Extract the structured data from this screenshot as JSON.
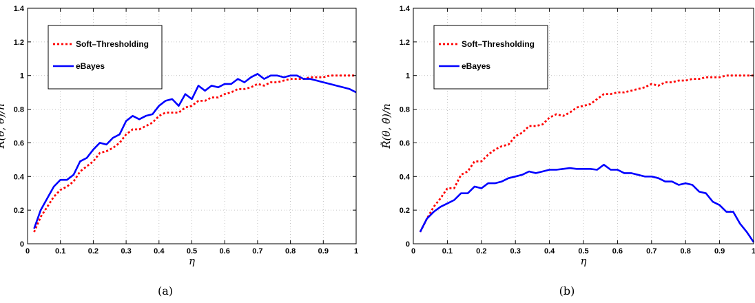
{
  "chart_data": [
    {
      "type": "line",
      "panel_label": "(a)",
      "xlabel": "η",
      "ylabel": "R̃(θ, θ̂)/n",
      "xlim": [
        0,
        1
      ],
      "ylim": [
        0,
        1.4
      ],
      "x_ticks": [
        "0",
        "0.1",
        "0.2",
        "0.3",
        "0.4",
        "0.5",
        "0.6",
        "0.7",
        "0.8",
        "0.9",
        "1"
      ],
      "y_ticks": [
        "0",
        "0.2",
        "0.4",
        "0.6",
        "0.8",
        "1",
        "1.2",
        "1.4"
      ],
      "grid": true,
      "legend_position": "top-left",
      "series": [
        {
          "name": "Soft–Thresholding",
          "color": "#ff0000",
          "style": "dotted",
          "points": [
            [
              0.02,
              0.07
            ],
            [
              0.04,
              0.16
            ],
            [
              0.06,
              0.22
            ],
            [
              0.08,
              0.28
            ],
            [
              0.1,
              0.32
            ],
            [
              0.12,
              0.34
            ],
            [
              0.14,
              0.37
            ],
            [
              0.16,
              0.43
            ],
            [
              0.18,
              0.46
            ],
            [
              0.2,
              0.49
            ],
            [
              0.22,
              0.54
            ],
            [
              0.24,
              0.55
            ],
            [
              0.26,
              0.57
            ],
            [
              0.28,
              0.6
            ],
            [
              0.3,
              0.65
            ],
            [
              0.32,
              0.68
            ],
            [
              0.34,
              0.68
            ],
            [
              0.36,
              0.7
            ],
            [
              0.38,
              0.72
            ],
            [
              0.4,
              0.76
            ],
            [
              0.42,
              0.78
            ],
            [
              0.44,
              0.78
            ],
            [
              0.46,
              0.78
            ],
            [
              0.48,
              0.81
            ],
            [
              0.5,
              0.82
            ],
            [
              0.52,
              0.85
            ],
            [
              0.54,
              0.85
            ],
            [
              0.56,
              0.87
            ],
            [
              0.58,
              0.87
            ],
            [
              0.6,
              0.89
            ],
            [
              0.62,
              0.9
            ],
            [
              0.64,
              0.92
            ],
            [
              0.66,
              0.92
            ],
            [
              0.68,
              0.93
            ],
            [
              0.7,
              0.95
            ],
            [
              0.72,
              0.94
            ],
            [
              0.74,
              0.96
            ],
            [
              0.76,
              0.96
            ],
            [
              0.78,
              0.97
            ],
            [
              0.8,
              0.98
            ],
            [
              0.82,
              0.98
            ],
            [
              0.84,
              0.98
            ],
            [
              0.86,
              0.99
            ],
            [
              0.88,
              0.99
            ],
            [
              0.9,
              0.99
            ],
            [
              0.92,
              1.0
            ],
            [
              0.94,
              1.0
            ],
            [
              0.96,
              1.0
            ],
            [
              0.98,
              1.0
            ],
            [
              1.0,
              1.0
            ]
          ]
        },
        {
          "name": "eBayes",
          "color": "#0000ff",
          "style": "solid",
          "points": [
            [
              0.02,
              0.09
            ],
            [
              0.04,
              0.2
            ],
            [
              0.06,
              0.27
            ],
            [
              0.08,
              0.34
            ],
            [
              0.1,
              0.38
            ],
            [
              0.12,
              0.38
            ],
            [
              0.14,
              0.41
            ],
            [
              0.16,
              0.49
            ],
            [
              0.18,
              0.51
            ],
            [
              0.2,
              0.56
            ],
            [
              0.22,
              0.6
            ],
            [
              0.24,
              0.59
            ],
            [
              0.26,
              0.63
            ],
            [
              0.28,
              0.65
            ],
            [
              0.3,
              0.73
            ],
            [
              0.32,
              0.76
            ],
            [
              0.34,
              0.74
            ],
            [
              0.36,
              0.76
            ],
            [
              0.38,
              0.77
            ],
            [
              0.4,
              0.82
            ],
            [
              0.42,
              0.85
            ],
            [
              0.44,
              0.86
            ],
            [
              0.46,
              0.82
            ],
            [
              0.48,
              0.89
            ],
            [
              0.5,
              0.86
            ],
            [
              0.52,
              0.94
            ],
            [
              0.54,
              0.91
            ],
            [
              0.56,
              0.94
            ],
            [
              0.58,
              0.93
            ],
            [
              0.6,
              0.95
            ],
            [
              0.62,
              0.95
            ],
            [
              0.64,
              0.98
            ],
            [
              0.66,
              0.96
            ],
            [
              0.68,
              0.99
            ],
            [
              0.7,
              1.01
            ],
            [
              0.72,
              0.98
            ],
            [
              0.74,
              1.0
            ],
            [
              0.76,
              1.0
            ],
            [
              0.78,
              0.99
            ],
            [
              0.8,
              1.0
            ],
            [
              0.82,
              1.0
            ],
            [
              0.84,
              0.98
            ],
            [
              0.86,
              0.98
            ],
            [
              0.88,
              0.97
            ],
            [
              0.9,
              0.96
            ],
            [
              0.92,
              0.95
            ],
            [
              0.94,
              0.94
            ],
            [
              0.96,
              0.93
            ],
            [
              0.98,
              0.92
            ],
            [
              1.0,
              0.9
            ]
          ]
        }
      ]
    },
    {
      "type": "line",
      "panel_label": "(b)",
      "xlabel": "η",
      "ylabel": "R̃(θ, θ̂)/n",
      "xlim": [
        0,
        1
      ],
      "ylim": [
        0,
        1.4
      ],
      "x_ticks": [
        "0",
        "0.1",
        "0.2",
        "0.3",
        "0.4",
        "0.5",
        "0.6",
        "0.7",
        "0.8",
        "0.9",
        "1"
      ],
      "y_ticks": [
        "0",
        "0.2",
        "0.4",
        "0.6",
        "0.8",
        "1",
        "1.2",
        "1.4"
      ],
      "grid": true,
      "legend_position": "top-left",
      "series": [
        {
          "name": "Soft–Thresholding",
          "color": "#ff0000",
          "style": "dotted",
          "points": [
            [
              0.02,
              0.07
            ],
            [
              0.04,
              0.15
            ],
            [
              0.06,
              0.22
            ],
            [
              0.08,
              0.27
            ],
            [
              0.1,
              0.33
            ],
            [
              0.12,
              0.33
            ],
            [
              0.14,
              0.41
            ],
            [
              0.16,
              0.43
            ],
            [
              0.18,
              0.49
            ],
            [
              0.2,
              0.49
            ],
            [
              0.22,
              0.53
            ],
            [
              0.24,
              0.56
            ],
            [
              0.26,
              0.58
            ],
            [
              0.28,
              0.59
            ],
            [
              0.3,
              0.64
            ],
            [
              0.32,
              0.66
            ],
            [
              0.34,
              0.7
            ],
            [
              0.36,
              0.7
            ],
            [
              0.38,
              0.71
            ],
            [
              0.4,
              0.75
            ],
            [
              0.42,
              0.77
            ],
            [
              0.44,
              0.76
            ],
            [
              0.46,
              0.78
            ],
            [
              0.48,
              0.81
            ],
            [
              0.5,
              0.82
            ],
            [
              0.52,
              0.83
            ],
            [
              0.54,
              0.86
            ],
            [
              0.56,
              0.89
            ],
            [
              0.58,
              0.89
            ],
            [
              0.6,
              0.9
            ],
            [
              0.62,
              0.9
            ],
            [
              0.64,
              0.91
            ],
            [
              0.66,
              0.92
            ],
            [
              0.68,
              0.93
            ],
            [
              0.7,
              0.95
            ],
            [
              0.72,
              0.94
            ],
            [
              0.74,
              0.96
            ],
            [
              0.76,
              0.96
            ],
            [
              0.78,
              0.97
            ],
            [
              0.8,
              0.97
            ],
            [
              0.82,
              0.98
            ],
            [
              0.84,
              0.98
            ],
            [
              0.86,
              0.99
            ],
            [
              0.88,
              0.99
            ],
            [
              0.9,
              0.99
            ],
            [
              0.92,
              1.0
            ],
            [
              0.94,
              1.0
            ],
            [
              0.96,
              1.0
            ],
            [
              0.98,
              1.0
            ],
            [
              1.0,
              1.0
            ]
          ]
        },
        {
          "name": "eBayes",
          "color": "#0000ff",
          "style": "solid",
          "points": [
            [
              0.02,
              0.07
            ],
            [
              0.04,
              0.15
            ],
            [
              0.06,
              0.19
            ],
            [
              0.08,
              0.22
            ],
            [
              0.1,
              0.24
            ],
            [
              0.12,
              0.26
            ],
            [
              0.14,
              0.3
            ],
            [
              0.16,
              0.3
            ],
            [
              0.18,
              0.34
            ],
            [
              0.2,
              0.33
            ],
            [
              0.22,
              0.36
            ],
            [
              0.24,
              0.36
            ],
            [
              0.26,
              0.37
            ],
            [
              0.28,
              0.39
            ],
            [
              0.3,
              0.4
            ],
            [
              0.32,
              0.41
            ],
            [
              0.34,
              0.43
            ],
            [
              0.36,
              0.42
            ],
            [
              0.38,
              0.43
            ],
            [
              0.4,
              0.44
            ],
            [
              0.42,
              0.44
            ],
            [
              0.44,
              0.445
            ],
            [
              0.46,
              0.45
            ],
            [
              0.48,
              0.445
            ],
            [
              0.5,
              0.445
            ],
            [
              0.52,
              0.445
            ],
            [
              0.54,
              0.44
            ],
            [
              0.56,
              0.47
            ],
            [
              0.58,
              0.44
            ],
            [
              0.6,
              0.44
            ],
            [
              0.62,
              0.42
            ],
            [
              0.64,
              0.42
            ],
            [
              0.66,
              0.41
            ],
            [
              0.68,
              0.4
            ],
            [
              0.7,
              0.4
            ],
            [
              0.72,
              0.39
            ],
            [
              0.74,
              0.37
            ],
            [
              0.76,
              0.37
            ],
            [
              0.78,
              0.35
            ],
            [
              0.8,
              0.36
            ],
            [
              0.82,
              0.35
            ],
            [
              0.84,
              0.31
            ],
            [
              0.86,
              0.3
            ],
            [
              0.88,
              0.25
            ],
            [
              0.9,
              0.23
            ],
            [
              0.92,
              0.19
            ],
            [
              0.94,
              0.19
            ],
            [
              0.96,
              0.12
            ],
            [
              0.98,
              0.07
            ],
            [
              1.0,
              0.01
            ]
          ]
        }
      ]
    }
  ]
}
